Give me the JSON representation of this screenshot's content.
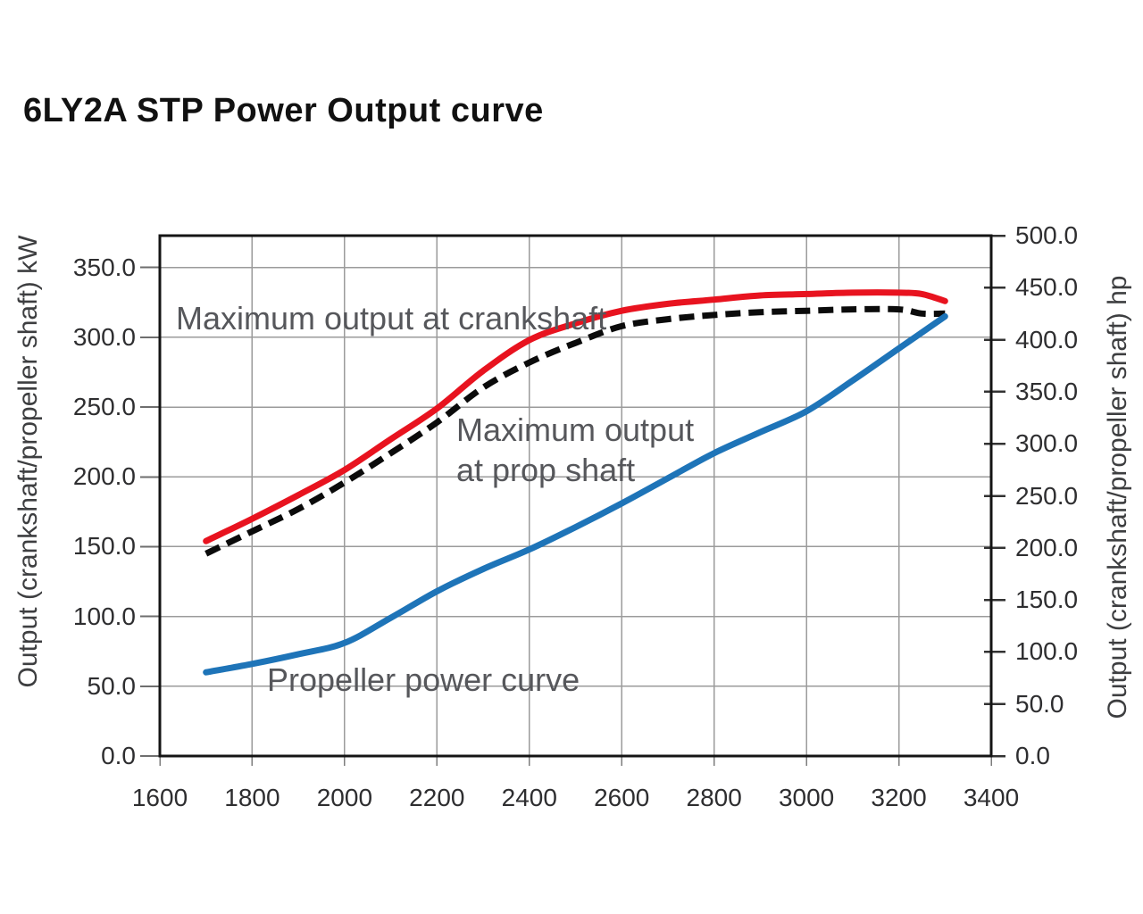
{
  "page": {
    "title": "6LY2A STP Power Output curve"
  },
  "chart_data": {
    "type": "line",
    "title": "6LY2A STP Power Output curve",
    "xlabel": "",
    "ylabel_left": "Output (crankshaft/propeller shaft) kW",
    "ylabel_right": "Output (crankshaft/propeller shaft) hp",
    "xlim": [
      1600,
      3400
    ],
    "ylim_left_kw": [
      0,
      372.85
    ],
    "ylim_right_hp": [
      0,
      500
    ],
    "grid": true,
    "x_ticks": [
      1600,
      1800,
      2000,
      2200,
      2400,
      2600,
      2800,
      3000,
      3200,
      3400
    ],
    "y_ticks_kw": [
      0,
      50,
      100,
      150,
      200,
      250,
      300,
      350
    ],
    "y_ticks_hp": [
      0,
      50,
      100,
      150,
      200,
      250,
      300,
      350,
      400,
      450,
      500
    ],
    "colors": {
      "crankshaft_curve": "#e8131f",
      "propshaft_curve": "#0b0b0b",
      "propeller_curve": "#1e74b8",
      "gridline": "#9b9b9b",
      "frame": "#141414"
    },
    "series": [
      {
        "key": "max-output-crankshaft",
        "name": "Maximum output at crankshaft",
        "color": "#e8131f",
        "style": "solid",
        "units_x": "rpm",
        "units_y": "kW",
        "points": [
          [
            1700,
            154
          ],
          [
            1800,
            170
          ],
          [
            1900,
            187
          ],
          [
            2000,
            205
          ],
          [
            2100,
            227
          ],
          [
            2200,
            249
          ],
          [
            2300,
            276
          ],
          [
            2400,
            298
          ],
          [
            2500,
            310
          ],
          [
            2600,
            319
          ],
          [
            2700,
            324
          ],
          [
            2800,
            327
          ],
          [
            2900,
            330
          ],
          [
            3000,
            331
          ],
          [
            3100,
            332
          ],
          [
            3200,
            332
          ],
          [
            3250,
            331
          ],
          [
            3300,
            326
          ]
        ]
      },
      {
        "key": "max-output-propshaft",
        "name": "Maximum output at prop shaft",
        "color": "#0b0b0b",
        "style": "dashed",
        "units_x": "rpm",
        "units_y": "kW",
        "points": [
          [
            1700,
            145
          ],
          [
            1800,
            161
          ],
          [
            1900,
            177
          ],
          [
            2000,
            196
          ],
          [
            2100,
            217
          ],
          [
            2200,
            239
          ],
          [
            2300,
            264
          ],
          [
            2400,
            282
          ],
          [
            2500,
            296
          ],
          [
            2600,
            308
          ],
          [
            2700,
            313
          ],
          [
            2800,
            316
          ],
          [
            2900,
            318
          ],
          [
            3000,
            319
          ],
          [
            3100,
            320
          ],
          [
            3200,
            320
          ],
          [
            3250,
            317
          ],
          [
            3300,
            317
          ]
        ]
      },
      {
        "key": "propeller-power-curve",
        "name": "Propeller power curve",
        "color": "#1e74b8",
        "style": "solid",
        "units_x": "rpm",
        "units_y": "kW",
        "points": [
          [
            1700,
            60
          ],
          [
            1800,
            66
          ],
          [
            1900,
            73
          ],
          [
            2000,
            81
          ],
          [
            2100,
            99
          ],
          [
            2200,
            118
          ],
          [
            2300,
            134
          ],
          [
            2400,
            148
          ],
          [
            2500,
            164
          ],
          [
            2600,
            181
          ],
          [
            2700,
            199
          ],
          [
            2800,
            217
          ],
          [
            2900,
            232
          ],
          [
            3000,
            247
          ],
          [
            3100,
            269
          ],
          [
            3200,
            292
          ],
          [
            3300,
            315
          ]
        ]
      }
    ],
    "annotations": {
      "crankshaft": {
        "text": "Maximum output at crankshaft"
      },
      "propshaft": {
        "line1": "Maximum output",
        "line2": "at prop shaft"
      },
      "propeller": {
        "text": "Propeller power curve"
      }
    }
  }
}
